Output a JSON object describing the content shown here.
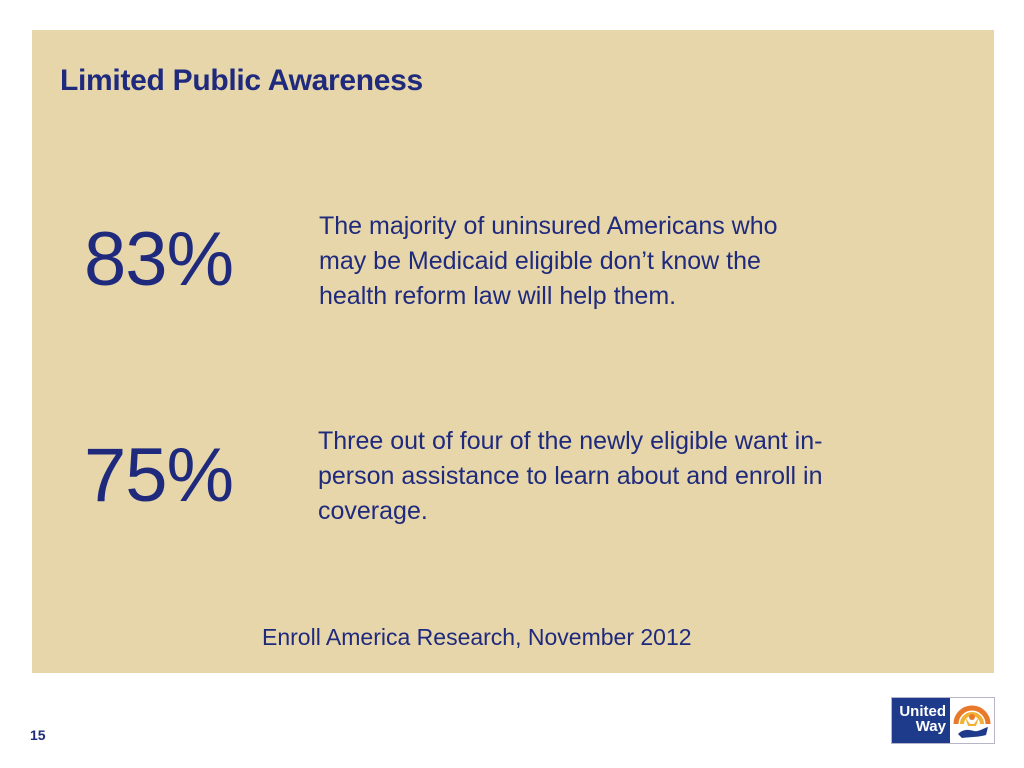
{
  "slide": {
    "title": "Limited Public Awareness",
    "stats": [
      {
        "value": "83%",
        "lines": [
          "The majority of uninsured Americans who",
          "may be Medicaid eligible don’t know the",
          "health reform law will help them."
        ]
      },
      {
        "value": "75%",
        "lines": [
          "Three out of four of the newly eligible want in-",
          "person assistance to learn about and enroll in",
          "coverage."
        ]
      }
    ],
    "source": "Enroll America Research, November 2012"
  },
  "footer": {
    "page_number": "15",
    "logo": {
      "line1": "United",
      "line2": "Way"
    }
  },
  "colors": {
    "text": "#1f2a7d",
    "panel": "#e6d6aa",
    "logo_blue": "#1e3a8a",
    "logo_accent": "#e8782a"
  }
}
